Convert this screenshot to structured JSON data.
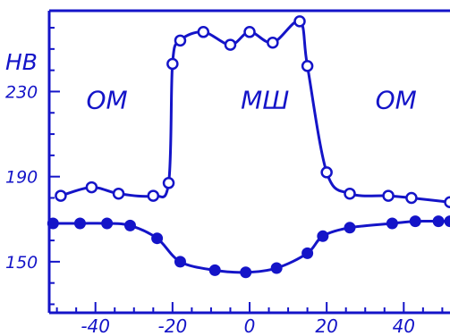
{
  "chart_data": {
    "type": "line",
    "ylabel": "HB",
    "xlim": [
      -52,
      52
    ],
    "ylim": [
      126,
      268
    ],
    "x_ticks": [
      -40,
      -20,
      0,
      20,
      40
    ],
    "x_tick_labels": [
      "-40",
      "-20",
      "0",
      "20",
      "40"
    ],
    "y_ticks": [
      150,
      190,
      230
    ],
    "y_tick_labels": [
      "150",
      "190",
      "230"
    ],
    "annotations": [
      {
        "text": "ОМ",
        "x": -37,
        "y": 222
      },
      {
        "text": "МШ",
        "x": 4,
        "y": 222
      },
      {
        "text": "ОМ",
        "x": 38,
        "y": 222
      }
    ],
    "series": [
      {
        "marker": "open-circle",
        "x": [
          -49,
          -41,
          -34,
          -25,
          -21,
          -20,
          -18,
          -12,
          -5,
          0,
          6,
          13,
          15,
          20,
          26,
          36,
          42,
          52
        ],
        "y": [
          181,
          185,
          182,
          181,
          187,
          243,
          254,
          258,
          252,
          258,
          253,
          263,
          242,
          192,
          182,
          181,
          180,
          178
        ]
      },
      {
        "marker": "filled-circle",
        "x": [
          -51,
          -44,
          -37,
          -31,
          -24,
          -18,
          -9,
          -1,
          7,
          15,
          19,
          26,
          37,
          43,
          49,
          52
        ],
        "y": [
          168,
          168,
          168,
          167,
          161,
          150,
          146,
          145,
          147,
          154,
          162,
          166,
          168,
          169,
          169,
          169
        ]
      }
    ],
    "colors": {
      "ink": "#1414c8",
      "background": "#ffffff"
    },
    "grid": false,
    "legend": "none"
  }
}
